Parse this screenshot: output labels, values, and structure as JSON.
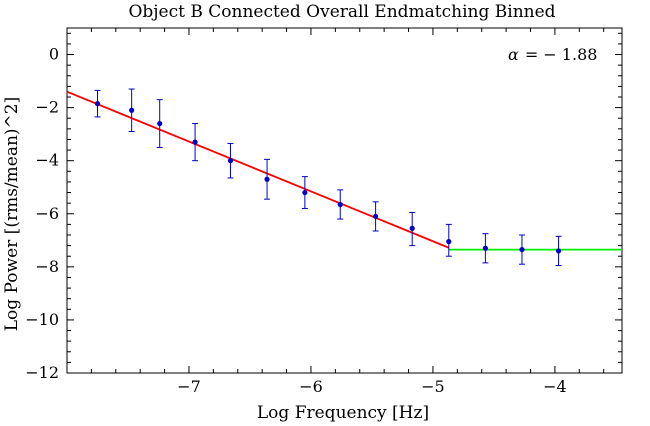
{
  "chart_data": {
    "type": "scatter",
    "title": "Object B Connected Overall Endmatching Binned",
    "xlabel": "Log Frequency [Hz]",
    "ylabel": "Log Power [(rms/mean)^2]",
    "xlim": [
      -8.0,
      -3.45
    ],
    "ylim": [
      -12,
      1
    ],
    "x_ticks": [
      -7,
      -6,
      -5,
      -4
    ],
    "x_tick_labels": [
      "−7",
      "−6",
      "−5",
      "−4"
    ],
    "y_ticks": [
      0,
      -2,
      -4,
      -6,
      -8,
      -10,
      -12
    ],
    "y_tick_labels": [
      "0",
      "−2",
      "−4",
      "−6",
      "−8",
      "−10",
      "−12"
    ],
    "grid": false,
    "series": [
      {
        "kind": "points_with_errorbars",
        "color": "#0000cc",
        "points": [
          {
            "x": -7.75,
            "y": -1.85,
            "err_low": -2.35,
            "err_high": -1.35
          },
          {
            "x": -7.47,
            "y": -2.1,
            "err_low": -2.9,
            "err_high": -1.3
          },
          {
            "x": -7.24,
            "y": -2.6,
            "err_low": -3.5,
            "err_high": -1.7
          },
          {
            "x": -6.95,
            "y": -3.3,
            "err_low": -4.0,
            "err_high": -2.6
          },
          {
            "x": -6.66,
            "y": -4.0,
            "err_low": -4.65,
            "err_high": -3.35
          },
          {
            "x": -6.36,
            "y": -4.7,
            "err_low": -5.45,
            "err_high": -3.95
          },
          {
            "x": -6.05,
            "y": -5.2,
            "err_low": -5.8,
            "err_high": -4.6
          },
          {
            "x": -5.76,
            "y": -5.65,
            "err_low": -6.2,
            "err_high": -5.1
          },
          {
            "x": -5.47,
            "y": -6.1,
            "err_low": -6.65,
            "err_high": -5.55
          },
          {
            "x": -5.17,
            "y": -6.55,
            "err_low": -7.2,
            "err_high": -5.95
          },
          {
            "x": -4.87,
            "y": -7.05,
            "err_low": -7.6,
            "err_high": -6.4
          },
          {
            "x": -4.57,
            "y": -7.3,
            "err_low": -7.85,
            "err_high": -6.75
          },
          {
            "x": -4.27,
            "y": -7.35,
            "err_low": -7.9,
            "err_high": -6.8
          },
          {
            "x": -3.97,
            "y": -7.4,
            "err_low": -7.95,
            "err_high": -6.85
          }
        ]
      },
      {
        "kind": "fit_line",
        "color": "#ff0000",
        "points": [
          [
            -8.0,
            -1.4
          ],
          [
            -4.87,
            -7.28
          ]
        ]
      },
      {
        "kind": "fit_line",
        "color": "#00ee00",
        "points": [
          [
            -4.87,
            -7.35
          ],
          [
            -3.45,
            -7.35
          ]
        ]
      }
    ],
    "annotation": {
      "symbol": "α",
      "text": "= − 1.88"
    }
  }
}
